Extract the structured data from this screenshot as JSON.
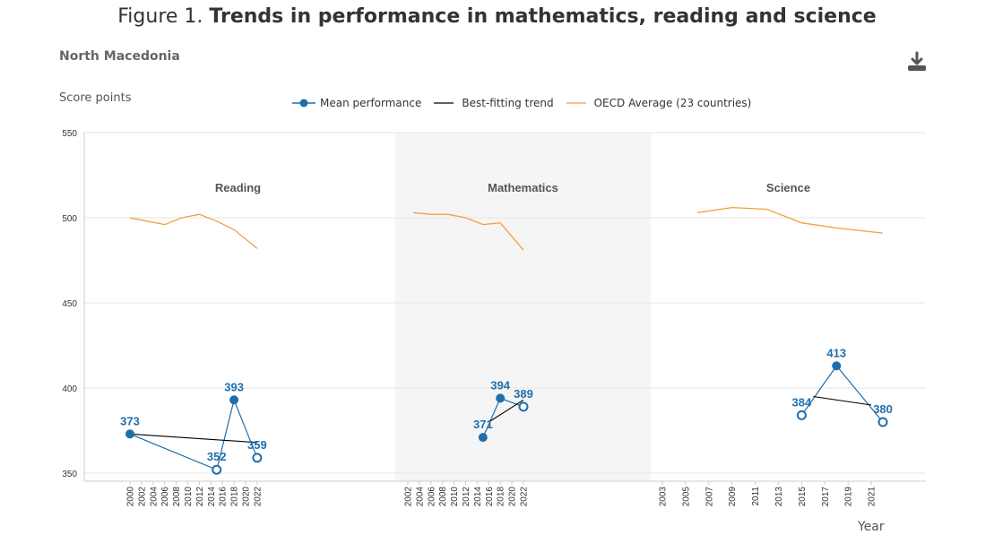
{
  "figure": {
    "prefix": "Figure 1.",
    "title": "Trends in performance in mathematics, reading and science",
    "country": "North Macedonia",
    "download_icon": "download-icon"
  },
  "legend": {
    "mean": "Mean performance",
    "trend": "Best-fitting trend",
    "oecd": "OECD Average (23 countries)"
  },
  "colors": {
    "mean": "#1f6fad",
    "trend": "#000000",
    "oecd": "#f0a040",
    "panel_bg": "#f5f5f5",
    "grid": "#e6e6e6"
  },
  "chart_data": {
    "type": "line",
    "ylabel": "Score points",
    "xlabel": "Year",
    "ylim": [
      350,
      550
    ],
    "yticks": [
      350,
      400,
      450,
      500,
      550
    ],
    "panels": [
      {
        "name": "Reading",
        "shaded": false,
        "x_ticks": [
          "2000",
          "2002",
          "2004",
          "2006",
          "2008",
          "2010",
          "2012",
          "2014",
          "2016",
          "2018",
          "2020",
          "2022"
        ],
        "x_range": [
          2000,
          2022
        ],
        "mean_performance": [
          {
            "year": 2000,
            "value": 373,
            "label": "373",
            "hollow": false
          },
          {
            "year": 2015,
            "value": 352,
            "label": "352",
            "hollow": true
          },
          {
            "year": 2018,
            "value": 393,
            "label": "393",
            "hollow": false
          },
          {
            "year": 2022,
            "value": 359,
            "label": "359",
            "hollow": true
          }
        ],
        "trend": [
          {
            "year": 2000,
            "value": 373
          },
          {
            "year": 2022,
            "value": 368
          }
        ],
        "oecd": [
          {
            "year": 2000,
            "value": 500
          },
          {
            "year": 2003,
            "value": 498
          },
          {
            "year": 2006,
            "value": 496
          },
          {
            "year": 2009,
            "value": 500
          },
          {
            "year": 2012,
            "value": 502
          },
          {
            "year": 2015,
            "value": 498
          },
          {
            "year": 2018,
            "value": 493
          },
          {
            "year": 2022,
            "value": 482
          }
        ]
      },
      {
        "name": "Mathematics",
        "shaded": true,
        "x_ticks": [
          "2002",
          "2004",
          "2006",
          "2008",
          "2010",
          "2012",
          "2014",
          "2016",
          "2018",
          "2020",
          "2022"
        ],
        "x_range": [
          2001,
          2023
        ],
        "mean_performance": [
          {
            "year": 2015,
            "value": 371,
            "label": "371",
            "hollow": false
          },
          {
            "year": 2018,
            "value": 394,
            "label": "394",
            "hollow": false
          },
          {
            "year": 2022,
            "value": 389,
            "label": "389",
            "hollow": true
          }
        ],
        "trend": [
          {
            "year": 2016,
            "value": 380
          },
          {
            "year": 2022,
            "value": 393
          }
        ],
        "oecd": [
          {
            "year": 2003,
            "value": 503
          },
          {
            "year": 2006,
            "value": 502
          },
          {
            "year": 2009,
            "value": 502
          },
          {
            "year": 2012,
            "value": 500
          },
          {
            "year": 2015,
            "value": 496
          },
          {
            "year": 2018,
            "value": 497
          },
          {
            "year": 2022,
            "value": 481
          }
        ]
      },
      {
        "name": "Science",
        "shaded": false,
        "x_ticks": [
          "2003",
          "2005",
          "2007",
          "2009",
          "2011",
          "2013",
          "2015",
          "2017",
          "2019",
          "2021"
        ],
        "x_range": [
          2002,
          2023
        ],
        "mean_performance": [
          {
            "year": 2015,
            "value": 384,
            "label": "384",
            "hollow": true
          },
          {
            "year": 2018,
            "value": 413,
            "label": "413",
            "hollow": false
          },
          {
            "year": 2022,
            "value": 380,
            "label": "380",
            "hollow": true
          }
        ],
        "trend": [
          {
            "year": 2016,
            "value": 395
          },
          {
            "year": 2021,
            "value": 390
          }
        ],
        "oecd": [
          {
            "year": 2006,
            "value": 503
          },
          {
            "year": 2009,
            "value": 506
          },
          {
            "year": 2012,
            "value": 505
          },
          {
            "year": 2015,
            "value": 497
          },
          {
            "year": 2018,
            "value": 494
          },
          {
            "year": 2022,
            "value": 491
          }
        ]
      }
    ]
  }
}
